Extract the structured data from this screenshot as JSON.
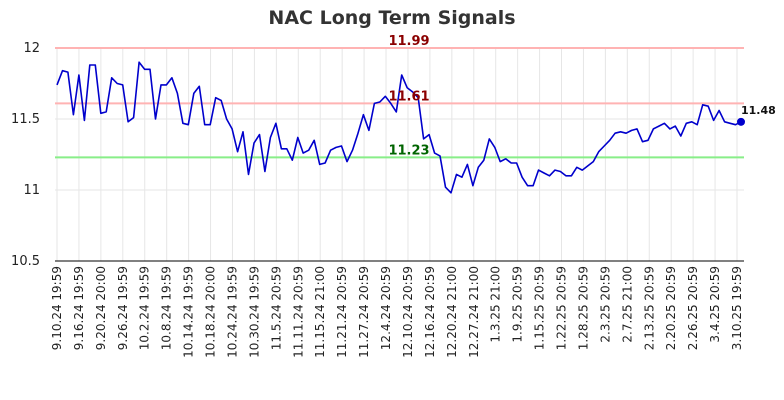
{
  "chart_data": {
    "type": "line",
    "title": "NAC Long Term Signals",
    "ylim": [
      10.5,
      12.0
    ],
    "yticks": [
      "10.5",
      "11",
      "11.5",
      "12"
    ],
    "grid": true,
    "colors": {
      "line": "#0000cc",
      "resistance": "#ffb3b3",
      "support": "#88ee88",
      "resistance_text": "#8b0000",
      "support_text": "#006400",
      "grid": "#e6e6e6"
    },
    "levels": [
      {
        "label": "11.99",
        "value": 12.0,
        "kind": "resistance"
      },
      {
        "label": "11.61",
        "value": 11.61,
        "kind": "resistance"
      },
      {
        "label": "11.23",
        "value": 11.23,
        "kind": "support"
      }
    ],
    "last_label": "11.48",
    "xtick_labels": [
      "9.10.24 19:59",
      "9.16.24 19:59",
      "9.20.24 20:00",
      "9.26.24 19:59",
      "10.2.24 19:59",
      "10.8.24 19:59",
      "10.14.24 19:59",
      "10.18.24 20:00",
      "10.24.24 19:59",
      "10.30.24 19:59",
      "11.5.24 20:59",
      "11.11.24 20:59",
      "11.15.24 21:00",
      "11.21.24 20:59",
      "11.27.24 20:59",
      "12.4.24 20:59",
      "12.10.24 20:59",
      "12.16.24 20:59",
      "12.20.24 21:00",
      "12.27.24 21:00",
      "1.3.25 21:00",
      "1.9.25 20:59",
      "1.15.25 20:59",
      "1.22.25 20:59",
      "1.28.25 20:59",
      "2.3.25 20:59",
      "2.7.25 21:00",
      "2.13.25 20:59",
      "2.20.25 20:59",
      "2.26.25 20:59",
      "3.4.25 20:59",
      "3.10.25 19:59"
    ],
    "values": [
      11.74,
      11.84,
      11.83,
      11.53,
      11.81,
      11.49,
      11.88,
      11.88,
      11.54,
      11.55,
      11.79,
      11.75,
      11.74,
      11.48,
      11.51,
      11.9,
      11.85,
      11.85,
      11.5,
      11.74,
      11.74,
      11.79,
      11.68,
      11.47,
      11.46,
      11.68,
      11.73,
      11.46,
      11.46,
      11.65,
      11.63,
      11.5,
      11.43,
      11.27,
      11.41,
      11.11,
      11.33,
      11.39,
      11.13,
      11.37,
      11.47,
      11.29,
      11.29,
      11.21,
      11.37,
      11.26,
      11.28,
      11.35,
      11.18,
      11.19,
      11.28,
      11.3,
      11.31,
      11.2,
      11.28,
      11.4,
      11.53,
      11.42,
      11.61,
      11.62,
      11.66,
      11.61,
      11.55,
      11.81,
      11.72,
      11.69,
      11.65,
      11.36,
      11.39,
      11.26,
      11.24,
      11.02,
      10.98,
      11.11,
      11.09,
      11.18,
      11.03,
      11.16,
      11.21,
      11.36,
      11.3,
      11.2,
      11.22,
      11.19,
      11.19,
      11.09,
      11.03,
      11.03,
      11.14,
      11.12,
      11.1,
      11.14,
      11.13,
      11.1,
      11.1,
      11.16,
      11.14,
      11.17,
      11.2,
      11.27,
      11.31,
      11.35,
      11.4,
      11.41,
      11.4,
      11.42,
      11.43,
      11.34,
      11.35,
      11.43,
      11.45,
      11.47,
      11.43,
      11.45,
      11.38,
      11.47,
      11.48,
      11.46,
      11.6,
      11.59,
      11.49,
      11.56,
      11.48,
      11.47,
      11.46,
      11.48
    ]
  }
}
